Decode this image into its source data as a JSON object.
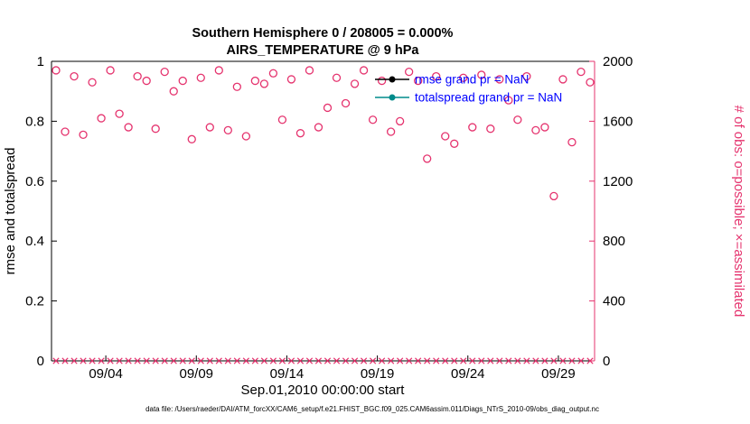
{
  "title": {
    "line1": "Southern Hemisphere 0 / 208005 = 0.000%",
    "line2": "AIRS_TEMPERATURE @ 9 hPa"
  },
  "axes": {
    "xlabel": "Sep.01,2010 00:00:00 start",
    "ylabel_left": "rmse and totalspread",
    "ylabel_right": "# of obs: o=possible; ×=assimilated"
  },
  "caption": "data file: /Users/raeder/DAI/ATM_forcXX/CAM6_setup/f.e21.FHIST_BGC.f09_025.CAM6assim.011/Diags_NTrS_2010-09/obs_diag_output.nc",
  "colors": {
    "obs_pink": "#e5336e",
    "rmse_black": "#000000",
    "spread_teal": "#008b8b",
    "legend_text_blue": "#0000ff",
    "axis_black": "#000000"
  },
  "legend": [
    {
      "label": "rmse grand pr = NaN",
      "color": "#000000"
    },
    {
      "label": "totalspread grand pr = NaN",
      "color": "#008b8b"
    }
  ],
  "chart_data": {
    "type": "scatter",
    "x_axis": {
      "start_day": 0,
      "end_day": 30,
      "tick_days": [
        3,
        8,
        13,
        18,
        23,
        28
      ],
      "tick_labels": [
        "09/04",
        "09/09",
        "09/14",
        "09/19",
        "09/24",
        "09/29"
      ]
    },
    "y_left": {
      "label": "rmse and totalspread",
      "lim": [
        0,
        1
      ],
      "ticks": [
        0,
        0.2,
        0.4,
        0.6,
        0.8,
        1
      ],
      "tick_labels": [
        "0",
        "0.2",
        "0.4",
        "0.6",
        "0.8",
        "1"
      ]
    },
    "y_right": {
      "label": "# of obs: o=possible; ×=assimilated",
      "lim": [
        0,
        2000
      ],
      "ticks": [
        0,
        400,
        800,
        1200,
        1600,
        2000
      ],
      "tick_labels": [
        "0",
        "400",
        "800",
        "1200",
        "1600",
        "2000"
      ]
    },
    "grid": false,
    "legend_position": "top-right-inside",
    "series": [
      {
        "name": "possible-obs-count",
        "marker": "o",
        "color": "#e5336e",
        "axis": "right",
        "x_days": [
          0.25,
          0.75,
          1.25,
          1.75,
          2.25,
          2.75,
          3.25,
          3.75,
          4.25,
          4.75,
          5.25,
          5.75,
          6.25,
          6.75,
          7.25,
          7.75,
          8.25,
          8.75,
          9.25,
          9.75,
          10.25,
          10.75,
          11.25,
          11.75,
          12.25,
          12.75,
          13.25,
          13.75,
          14.25,
          14.75,
          15.25,
          15.75,
          16.25,
          16.75,
          17.25,
          17.75,
          18.25,
          18.75,
          19.25,
          19.75,
          20.25,
          20.75,
          21.25,
          21.75,
          22.25,
          22.75,
          23.25,
          23.75,
          24.25,
          24.75,
          25.25,
          25.75,
          26.25,
          26.75,
          27.25,
          27.75,
          28.25,
          28.75,
          29.25,
          29.75
        ],
        "y": [
          1940,
          1530,
          1900,
          1510,
          1860,
          1620,
          1940,
          1650,
          1560,
          1900,
          1870,
          1550,
          1930,
          1800,
          1870,
          1480,
          1890,
          1560,
          1940,
          1540,
          1830,
          1500,
          1870,
          1850,
          1920,
          1610,
          1880,
          1520,
          1940,
          1560,
          1690,
          1890,
          1720,
          1850,
          1940,
          1610,
          1870,
          1530,
          1600,
          1930,
          1870,
          1350,
          1900,
          1500,
          1450,
          1890,
          1560,
          1910,
          1550,
          1880,
          1740,
          1610,
          1900,
          1540,
          1560,
          1100,
          1880,
          1460,
          1930,
          1860
        ]
      },
      {
        "name": "assimilated-obs-count",
        "marker": "x",
        "color": "#e5336e",
        "axis": "right",
        "x_days": [
          0.25,
          0.75,
          1.25,
          1.75,
          2.25,
          2.75,
          3.25,
          3.75,
          4.25,
          4.75,
          5.25,
          5.75,
          6.25,
          6.75,
          7.25,
          7.75,
          8.25,
          8.75,
          9.25,
          9.75,
          10.25,
          10.75,
          11.25,
          11.75,
          12.25,
          12.75,
          13.25,
          13.75,
          14.25,
          14.75,
          15.25,
          15.75,
          16.25,
          16.75,
          17.25,
          17.75,
          18.25,
          18.75,
          19.25,
          19.75,
          20.25,
          20.75,
          21.25,
          21.75,
          22.25,
          22.75,
          23.25,
          23.75,
          24.25,
          24.75,
          25.25,
          25.75,
          26.25,
          26.75,
          27.25,
          27.75,
          28.25,
          28.75,
          29.25,
          29.75
        ],
        "y_constant": 0
      }
    ],
    "rmse_grand": "NaN",
    "totalspread_grand": "NaN"
  }
}
